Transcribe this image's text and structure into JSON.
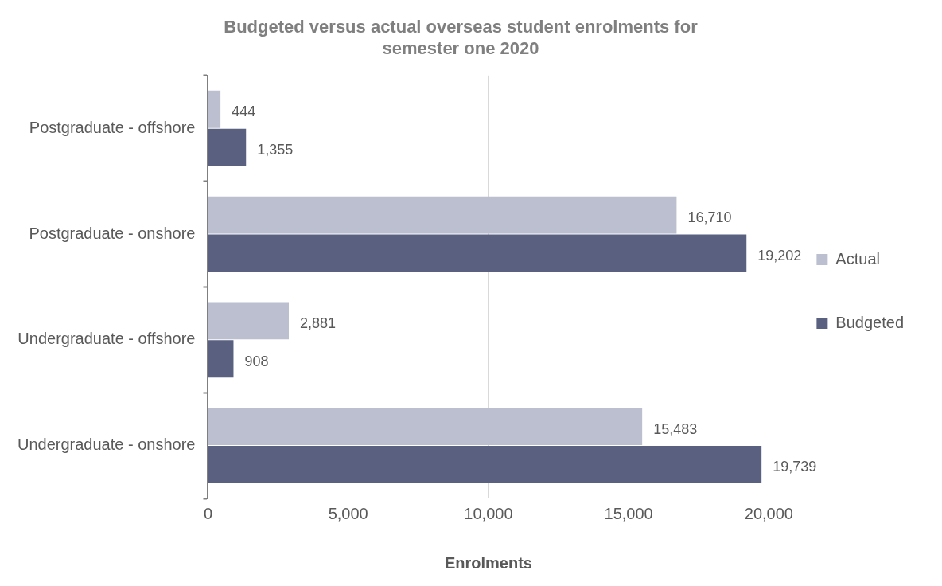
{
  "chart_data": {
    "type": "bar",
    "orientation": "horizontal",
    "title": "Budgeted versus actual overseas student enrolments for semester one 2020",
    "xlabel": "Enrolments",
    "categories": [
      "Postgraduate - offshore",
      "Postgraduate - onshore",
      "Undergraduate - offshore",
      "Undergraduate - onshore"
    ],
    "series": [
      {
        "name": "Actual",
        "color": "#bcbfcf",
        "values": [
          444,
          16710,
          2881,
          15483
        ],
        "value_labels": [
          "444",
          "16,710",
          "2,881",
          "15,483"
        ]
      },
      {
        "name": "Budgeted",
        "color": "#5a6180",
        "values": [
          1355,
          19202,
          908,
          19739
        ],
        "value_labels": [
          "1,355",
          "19,202",
          "908",
          "19,739"
        ]
      }
    ],
    "xlim": [
      0,
      20000
    ],
    "xticks": [
      0,
      {
        "value": 5000,
        "label": "5,000"
      },
      {
        "value": 10000,
        "label": "10,000"
      },
      {
        "value": 15000,
        "label": "15,000"
      },
      {
        "value": 20000,
        "label": "20,000"
      }
    ],
    "grid": "x",
    "legend": "right"
  }
}
